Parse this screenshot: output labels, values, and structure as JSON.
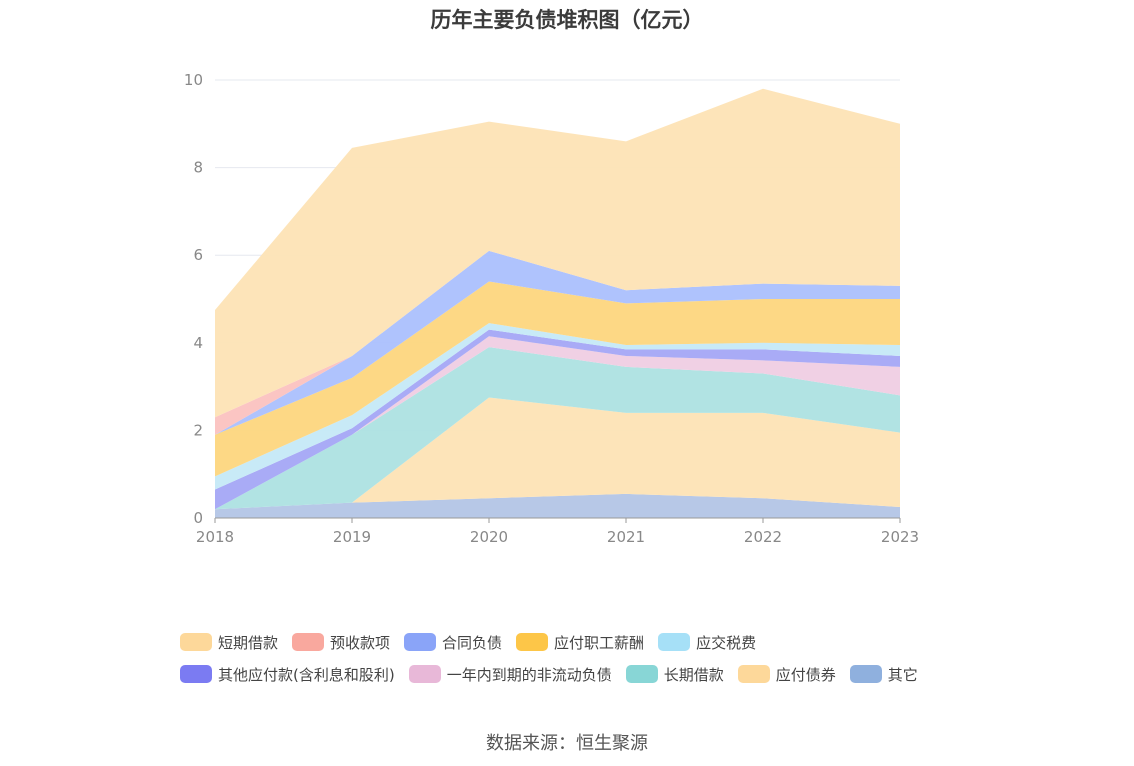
{
  "chart_data": {
    "type": "area",
    "stacked": true,
    "title": "历年主要负债堆积图（亿元）",
    "source": "数据来源：恒生聚源",
    "x": [
      "2018",
      "2019",
      "2020",
      "2021",
      "2022",
      "2023"
    ],
    "ylim": [
      0,
      10
    ],
    "yticks": [
      "0",
      "2",
      "4",
      "6",
      "8",
      "10"
    ],
    "grid": true,
    "legend_position": "bottom",
    "series": [
      {
        "name": "其它",
        "color": "#b3c5e6",
        "values": [
          0.2,
          0.35,
          0.45,
          0.55,
          0.45,
          0.25
        ]
      },
      {
        "name": "应付债券",
        "color": "#fde3b5",
        "values": [
          0,
          0,
          2.3,
          1.85,
          1.95,
          1.7
        ]
      },
      {
        "name": "长期借款",
        "color": "#ade2e2",
        "values": [
          0,
          1.55,
          1.15,
          1.05,
          0.9,
          0.85
        ]
      },
      {
        "name": "一年内到期的非流动负债",
        "color": "#efcde3",
        "values": [
          0,
          0,
          0.25,
          0.25,
          0.3,
          0.65
        ]
      },
      {
        "name": "其他应付款(含利息和股利)",
        "color": "#a4a7f6",
        "values": [
          0.45,
          0.15,
          0.15,
          0.15,
          0.25,
          0.25
        ]
      },
      {
        "name": "应交税费",
        "color": "#c5e9f7",
        "values": [
          0.3,
          0.3,
          0.15,
          0.1,
          0.15,
          0.25
        ]
      },
      {
        "name": "应付职工薪酬",
        "color": "#fdd67e",
        "values": [
          0.95,
          0.85,
          0.95,
          0.95,
          1.0,
          1.05
        ]
      },
      {
        "name": "合同负债",
        "color": "#abc0fd",
        "values": [
          0,
          0.5,
          0.7,
          0.3,
          0.35,
          0.3
        ]
      },
      {
        "name": "预收款项",
        "color": "#fbc2c0",
        "values": [
          0.4,
          0,
          0,
          0,
          0,
          0
        ]
      },
      {
        "name": "短期借款",
        "color": "#fde3b5",
        "values": [
          2.45,
          4.75,
          2.95,
          3.4,
          4.45,
          3.7
        ]
      }
    ],
    "legend": [
      [
        {
          "name": "短期借款",
          "color": "#fdd89a"
        },
        {
          "name": "预收款项",
          "color": "#f9a89e"
        },
        {
          "name": "合同负债",
          "color": "#8aa4f8"
        },
        {
          "name": "应付职工薪酬",
          "color": "#fdc648"
        },
        {
          "name": "应交税费",
          "color": "#a6e0f7"
        }
      ],
      [
        {
          "name": "其他应付款(含利息和股利)",
          "color": "#7b7bf2"
        },
        {
          "name": "一年内到期的非流动负债",
          "color": "#e8b8d8"
        },
        {
          "name": "长期借款",
          "color": "#88d6d6"
        },
        {
          "name": "应付债券",
          "color": "#fdd89a"
        },
        {
          "name": "其它",
          "color": "#8fb0de"
        }
      ]
    ]
  }
}
